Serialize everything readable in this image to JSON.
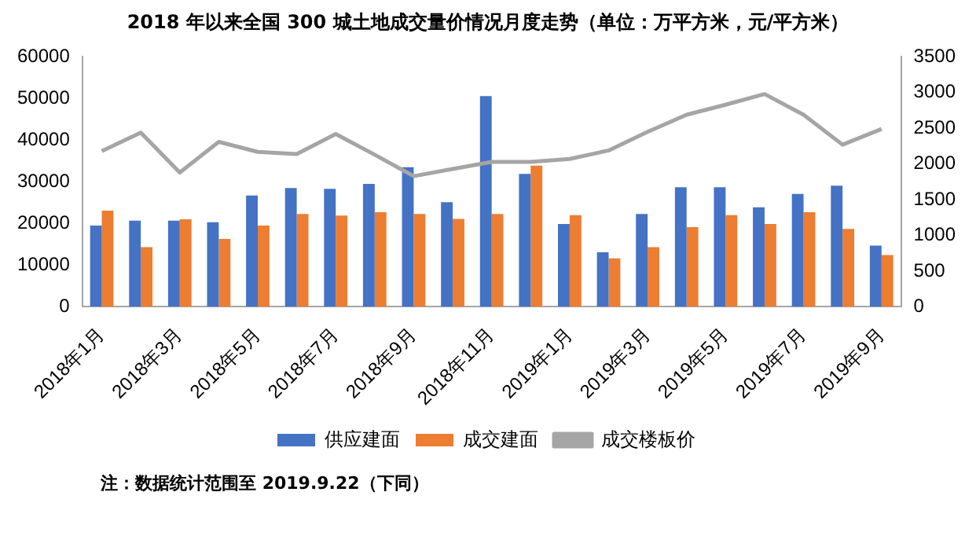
{
  "chart_data": {
    "type": "bar",
    "title": "2018 年以来全国 300 城土地成交量价情况月度走势（单位：万平方米，元/平方米）",
    "categories": [
      "2018年1月",
      null,
      "2018年3月",
      null,
      "2018年5月",
      null,
      "2018年7月",
      null,
      "2018年9月",
      null,
      "2018年11月",
      null,
      "2019年1月",
      null,
      "2019年3月",
      null,
      "2019年5月",
      null,
      "2019年7月",
      null,
      "2019年9月"
    ],
    "series": [
      {
        "name": "供应建面",
        "color": "#4472c4",
        "values": [
          19500,
          20700,
          20700,
          20300,
          26700,
          28500,
          28300,
          29500,
          33500,
          25100,
          50600,
          31900,
          19900,
          13100,
          22300,
          28700,
          28700,
          23900,
          27100,
          29100,
          14700
        ]
      },
      {
        "name": "成交建面",
        "color": "#ed7d31",
        "values": [
          23100,
          14300,
          21000,
          16300,
          19500,
          22300,
          21900,
          22700,
          22300,
          21100,
          22300,
          33900,
          22000,
          11600,
          14300,
          19100,
          22000,
          19900,
          22700,
          18700,
          12400
        ]
      },
      {
        "name": "成交楼板价",
        "type": "line",
        "axis": "y2",
        "color": "#a5a5a5",
        "values": [
          2180,
          2440,
          1880,
          2310,
          2170,
          2140,
          2420,
          2130,
          1830,
          1930,
          2030,
          2030,
          2070,
          2190,
          2450,
          2690,
          2830,
          2980,
          2690,
          2270,
          2490
        ]
      }
    ],
    "ylim": [
      0,
      60000
    ],
    "yticks": [
      0,
      10000,
      20000,
      30000,
      40000,
      50000,
      60000
    ],
    "y2lim": [
      0,
      3500
    ],
    "y2ticks": [
      0,
      500,
      1000,
      1500,
      2000,
      2500,
      3000,
      3500
    ],
    "grid": false,
    "legend": "bottom",
    "marker": "none",
    "annotations": [
      "注：数据统计范围至 2019.9.22（下同）"
    ]
  }
}
